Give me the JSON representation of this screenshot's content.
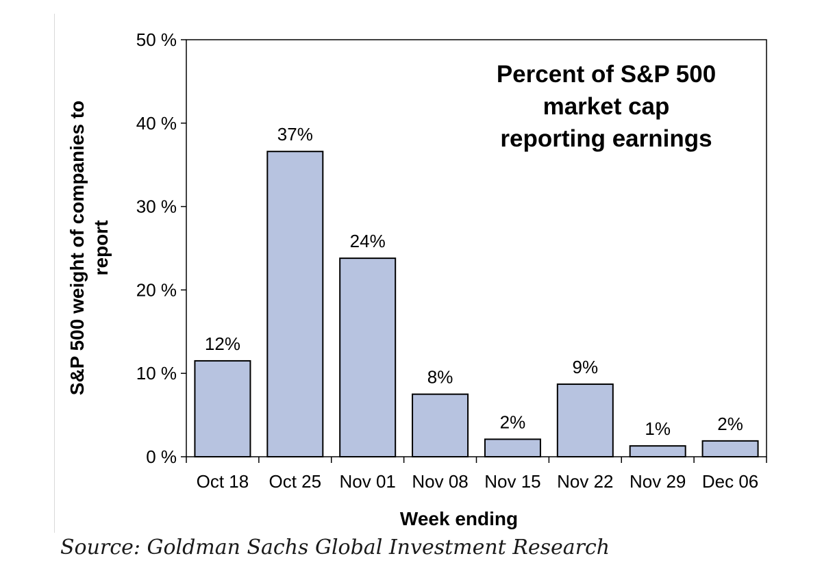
{
  "chart_data": {
    "type": "bar",
    "title_lines": [
      "Percent of S&P 500",
      "market cap",
      "reporting earnings"
    ],
    "categories": [
      "Oct 18",
      "Oct 25",
      "Nov 01",
      "Nov 08",
      "Nov 15",
      "Nov 22",
      "Nov 29",
      "Dec 06"
    ],
    "values": [
      11.5,
      36.6,
      23.8,
      7.5,
      2.1,
      8.7,
      1.3,
      1.9
    ],
    "data_labels": [
      "12%",
      "37%",
      "24%",
      "8%",
      "2%",
      "9%",
      "1%",
      "2%"
    ],
    "ylim": [
      0,
      50
    ],
    "yticks": [
      0,
      10,
      20,
      30,
      40,
      50
    ],
    "ytick_labels": [
      "0 %",
      "10 %",
      "20 %",
      "30 %",
      "40 %",
      "50 %"
    ],
    "xlabel": "Week ending",
    "ylabel_lines": [
      "S&P 500 weight of companies to",
      "report"
    ],
    "bar_color": "#b7c3e0",
    "grid": false
  },
  "source": "Source: Goldman Sachs Global Investment Research"
}
